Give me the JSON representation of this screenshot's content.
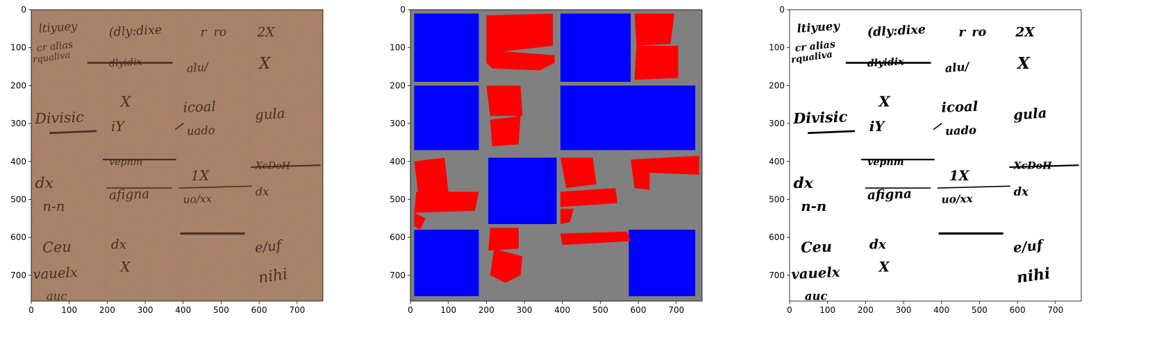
{
  "figure": {
    "panels": [
      {
        "name": "original-scan",
        "kind": "manuscript",
        "xticks": [
          0,
          100,
          200,
          300,
          400,
          500,
          600,
          700
        ],
        "yticks": [
          0,
          100,
          200,
          300,
          400,
          500,
          600,
          700
        ],
        "xlim": [
          0,
          768
        ],
        "ylim": [
          0,
          768
        ],
        "colors": {
          "background": "#a98269",
          "ink": "#3a2418"
        }
      },
      {
        "name": "region-mask",
        "kind": "mask",
        "xticks": [
          0,
          100,
          200,
          300,
          400,
          500,
          600,
          700
        ],
        "yticks": [
          0,
          100,
          200,
          300,
          400,
          500,
          600,
          700
        ],
        "xlim": [
          0,
          768
        ],
        "ylim": [
          0,
          768
        ],
        "colors": {
          "background": "#808080",
          "block": "#0000ff",
          "region": "#ff0000"
        }
      },
      {
        "name": "binarized",
        "kind": "binary",
        "xticks": [
          0,
          100,
          200,
          300,
          400,
          500,
          600,
          700
        ],
        "yticks": [
          0,
          100,
          200,
          300,
          400,
          500,
          600,
          700
        ],
        "xlim": [
          0,
          768
        ],
        "ylim": [
          0,
          768
        ],
        "colors": {
          "background": "#ffffff",
          "ink": "#000000"
        }
      }
    ],
    "manuscript_text": [
      {
        "t": "ltiyuey",
        "x": 20,
        "y": 60,
        "s": 30,
        "r": -4
      },
      {
        "t": "cr alias",
        "x": 15,
        "y": 110,
        "s": 26,
        "r": -6
      },
      {
        "t": "rqualiva",
        "x": 5,
        "y": 140,
        "s": 24,
        "r": -8
      },
      {
        "t": "(dly:dixe",
        "x": 205,
        "y": 70,
        "s": 32,
        "r": -3
      },
      {
        "t": "r",
        "x": 445,
        "y": 70,
        "s": 34,
        "r": 0
      },
      {
        "t": "ro",
        "x": 480,
        "y": 70,
        "s": 32,
        "r": -2
      },
      {
        "t": "2X",
        "x": 595,
        "y": 70,
        "s": 34,
        "r": 0
      },
      {
        "t": "dlyidix",
        "x": 205,
        "y": 150,
        "s": 26,
        "r": -3
      },
      {
        "t": "alu/",
        "x": 410,
        "y": 165,
        "s": 30,
        "r": -5
      },
      {
        "t": "X",
        "x": 600,
        "y": 155,
        "s": 42,
        "r": 0
      },
      {
        "t": "Divisic",
        "x": 10,
        "y": 300,
        "s": 38,
        "r": -2
      },
      {
        "t": "X",
        "x": 235,
        "y": 255,
        "s": 38,
        "r": 0
      },
      {
        "t": "iY",
        "x": 210,
        "y": 320,
        "s": 36,
        "r": 0
      },
      {
        "t": "icoal",
        "x": 400,
        "y": 270,
        "s": 36,
        "r": -2
      },
      {
        "t": "uado",
        "x": 410,
        "y": 330,
        "s": 30,
        "r": -2
      },
      {
        "t": "gula",
        "x": 590,
        "y": 290,
        "s": 36,
        "r": -4
      },
      {
        "t": "dx",
        "x": 10,
        "y": 470,
        "s": 40,
        "r": 0
      },
      {
        "t": "n-n",
        "x": 30,
        "y": 530,
        "s": 36,
        "r": 0
      },
      {
        "t": "vepnm",
        "x": 205,
        "y": 410,
        "s": 26,
        "r": 0
      },
      {
        "t": "afigna",
        "x": 205,
        "y": 500,
        "s": 34,
        "r": -2
      },
      {
        "t": "1X",
        "x": 420,
        "y": 450,
        "s": 36,
        "r": 0
      },
      {
        "t": "uo/xx",
        "x": 400,
        "y": 510,
        "s": 28,
        "r": -2
      },
      {
        "t": "XcDoH",
        "x": 590,
        "y": 420,
        "s": 26,
        "r": 0
      },
      {
        "t": "dx",
        "x": 590,
        "y": 490,
        "s": 30,
        "r": 0
      },
      {
        "t": "Ceu",
        "x": 30,
        "y": 640,
        "s": 38,
        "r": -2
      },
      {
        "t": "vauelx",
        "x": 5,
        "y": 710,
        "s": 36,
        "r": -3
      },
      {
        "t": "auc",
        "x": 40,
        "y": 765,
        "s": 30,
        "r": 0
      },
      {
        "t": "dx",
        "x": 210,
        "y": 630,
        "s": 34,
        "r": 0
      },
      {
        "t": "X",
        "x": 235,
        "y": 690,
        "s": 36,
        "r": 0
      },
      {
        "t": "e/uf",
        "x": 590,
        "y": 640,
        "s": 36,
        "r": -6
      },
      {
        "t": "nihi",
        "x": 600,
        "y": 720,
        "s": 40,
        "r": -8
      }
    ],
    "mask_blocks": [
      [
        10,
        10,
        180,
        190
      ],
      [
        395,
        10,
        580,
        190
      ],
      [
        10,
        200,
        180,
        370
      ],
      [
        395,
        200,
        580,
        370
      ],
      [
        575,
        200,
        750,
        370
      ],
      [
        205,
        390,
        385,
        565
      ],
      [
        10,
        580,
        180,
        755
      ],
      [
        575,
        580,
        750,
        755
      ]
    ],
    "mask_regions": [
      [
        [
          200,
          15
        ],
        [
          375,
          10
        ],
        [
          375,
          95
        ],
        [
          245,
          110
        ],
        [
          380,
          120
        ],
        [
          380,
          140
        ],
        [
          340,
          160
        ],
        [
          215,
          155
        ],
        [
          200,
          140
        ]
      ],
      [
        [
          590,
          10
        ],
        [
          695,
          10
        ],
        [
          685,
          90
        ],
        [
          595,
          95
        ]
      ],
      [
        [
          595,
          95
        ],
        [
          705,
          95
        ],
        [
          705,
          180
        ],
        [
          590,
          185
        ]
      ],
      [
        [
          200,
          200
        ],
        [
          290,
          200
        ],
        [
          295,
          280
        ],
        [
          210,
          280
        ]
      ],
      [
        [
          210,
          290
        ],
        [
          290,
          280
        ],
        [
          285,
          355
        ],
        [
          215,
          360
        ]
      ],
      [
        [
          10,
          400
        ],
        [
          90,
          390
        ],
        [
          100,
          480
        ],
        [
          20,
          480
        ]
      ],
      [
        [
          15,
          480
        ],
        [
          180,
          480
        ],
        [
          170,
          530
        ],
        [
          10,
          535
        ]
      ],
      [
        [
          10,
          535
        ],
        [
          40,
          550
        ],
        [
          25,
          580
        ],
        [
          10,
          570
        ]
      ],
      [
        [
          395,
          390
        ],
        [
          480,
          390
        ],
        [
          490,
          460
        ],
        [
          410,
          470
        ]
      ],
      [
        [
          395,
          480
        ],
        [
          540,
          470
        ],
        [
          545,
          510
        ],
        [
          395,
          520
        ]
      ],
      [
        [
          395,
          525
        ],
        [
          430,
          525
        ],
        [
          420,
          560
        ],
        [
          395,
          565
        ]
      ],
      [
        [
          580,
          395
        ],
        [
          760,
          385
        ],
        [
          760,
          435
        ],
        [
          630,
          430
        ],
        [
          630,
          475
        ],
        [
          590,
          470
        ]
      ],
      [
        [
          210,
          575
        ],
        [
          285,
          575
        ],
        [
          285,
          630
        ],
        [
          205,
          635
        ]
      ],
      [
        [
          220,
          630
        ],
        [
          295,
          650
        ],
        [
          290,
          700
        ],
        [
          250,
          720
        ],
        [
          210,
          700
        ]
      ],
      [
        [
          395,
          590
        ],
        [
          570,
          585
        ],
        [
          580,
          610
        ],
        [
          400,
          620
        ]
      ]
    ],
    "tile_bounds": [
      195,
      385,
      575
    ]
  }
}
